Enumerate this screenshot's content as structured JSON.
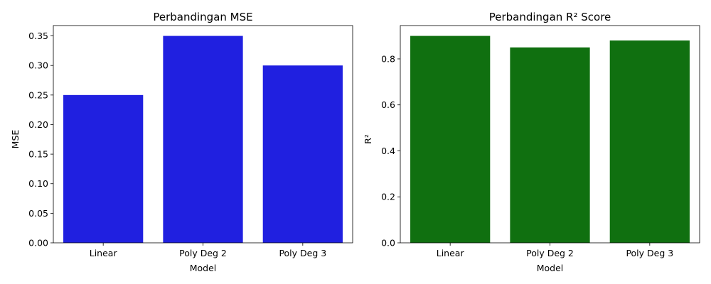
{
  "chart_data": [
    {
      "type": "bar",
      "title": "Perbandingan MSE",
      "xlabel": "Model",
      "ylabel": "MSE",
      "categories": [
        "Linear",
        "Poly Deg 2",
        "Poly Deg 3"
      ],
      "values": [
        0.25,
        0.35,
        0.3
      ],
      "ylim": [
        0,
        0.3675
      ],
      "yticks": [
        0.0,
        0.05,
        0.1,
        0.15,
        0.2,
        0.25,
        0.3,
        0.35
      ],
      "ytick_labels": [
        "0.00",
        "0.05",
        "0.10",
        "0.15",
        "0.20",
        "0.25",
        "0.30",
        "0.35"
      ],
      "bar_color": "#2020e0",
      "grid": false,
      "legend": "none"
    },
    {
      "type": "bar",
      "title": "Perbandingan R² Score",
      "xlabel": "Model",
      "ylabel": "R²",
      "categories": [
        "Linear",
        "Poly Deg 2",
        "Poly Deg 3"
      ],
      "values": [
        0.9,
        0.85,
        0.88
      ],
      "ylim": [
        0,
        0.945
      ],
      "yticks": [
        0.0,
        0.2,
        0.4,
        0.6,
        0.8
      ],
      "ytick_labels": [
        "0.0",
        "0.2",
        "0.4",
        "0.6",
        "0.8"
      ],
      "bar_color": "#107010",
      "grid": false,
      "legend": "none"
    }
  ]
}
